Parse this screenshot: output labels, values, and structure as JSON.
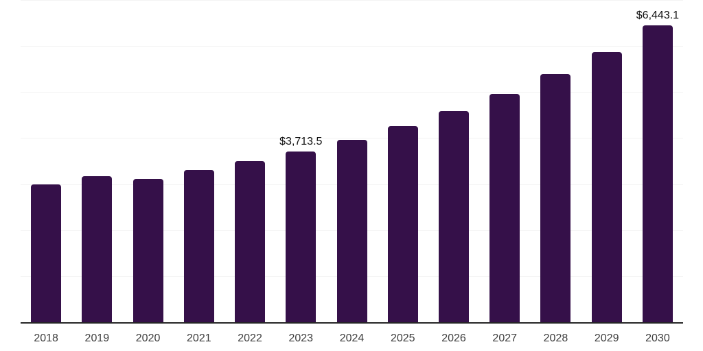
{
  "chart_data": {
    "type": "bar",
    "title": "",
    "xlabel": "",
    "ylabel": "",
    "categories": [
      "2018",
      "2019",
      "2020",
      "2021",
      "2022",
      "2023",
      "2024",
      "2025",
      "2026",
      "2027",
      "2028",
      "2029",
      "2030"
    ],
    "values": [
      3000,
      3180,
      3120,
      3300,
      3495,
      3713.5,
      3955,
      4255,
      4585,
      4955,
      5390,
      5870,
      6443.1
    ],
    "data_labels": {
      "2023": "$3,713.5",
      "2030": "$6,443.1"
    },
    "ylim": [
      0,
      7000
    ],
    "gridline_step": 1000,
    "grid": true,
    "legend": "none",
    "colors": {
      "bar": "#351049",
      "gridline": "#f3f3f3",
      "axis_line": "#262626",
      "tick_label": "#3d3d3d",
      "data_label": "#0d0d0d",
      "background": "#ffffff"
    }
  }
}
